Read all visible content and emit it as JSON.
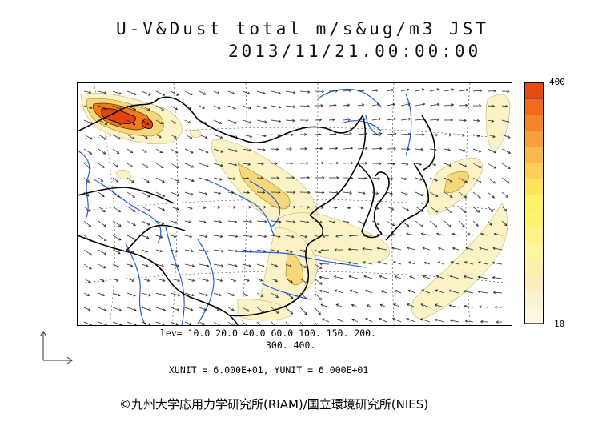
{
  "header": {
    "title_line1": "U-V&Dust total m/s&ug/m3 JST",
    "title_line2": "2013/11/21.00:00:00"
  },
  "colorbar": {
    "max_label": "400",
    "min_label": "10",
    "colors": [
      "#e84a10",
      "#f26a1c",
      "#f5852a",
      "#f7a03a",
      "#f9b94a",
      "#fbcf55",
      "#fde35c",
      "#fef067",
      "#fff36e",
      "#fff386",
      "#fff59c",
      "#fdf1b0",
      "#fbedbd",
      "#fbf2cf",
      "#fdf7e0"
    ]
  },
  "levels": {
    "line1": "lev= 10.0 20.0 40.0 60.0 100. 150. 200.",
    "line2": "300. 400."
  },
  "units": {
    "line": "XUNIT = 6.000E+01, YUNIT = 6.000E+01"
  },
  "copyright": "©九州大学応用力学研究所(RIAM)/国立環境研究所(NIES)",
  "map_colors": {
    "coast": "#000000",
    "river": "#1f5fe0",
    "dust_light": "#fbf2c6",
    "dust_mid": "#f6d77a",
    "dust_high": "#f07a1e",
    "dust_peak": "#e2420e",
    "vector": "#222222"
  }
}
